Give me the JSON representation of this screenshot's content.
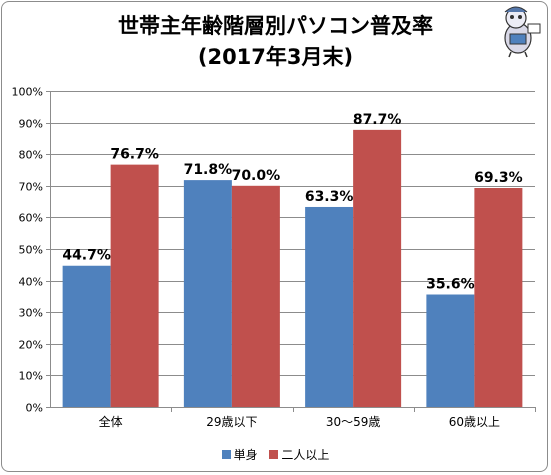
{
  "chart_data": {
    "type": "bar",
    "title": "世帯主年齢階層別パソコン普及率",
    "subtitle": "(2017年3月末)",
    "categories": [
      "全体",
      "29歳以下",
      "30〜59歳",
      "60歳以上"
    ],
    "series": [
      {
        "name": "単身",
        "values": [
          44.7,
          71.8,
          63.3,
          35.6
        ],
        "color": "#4f81bd"
      },
      {
        "name": "二人以上",
        "values": [
          76.7,
          70.0,
          87.7,
          69.3
        ],
        "color": "#c0504d"
      }
    ],
    "data_labels": [
      [
        "44.7%",
        "71.8%",
        "63.3%",
        "35.6%"
      ],
      [
        "76.7%",
        "70.0%",
        "87.7%",
        "69.3%"
      ]
    ],
    "ylim": [
      0,
      100
    ],
    "yticks": [
      "0%",
      "10%",
      "20%",
      "30%",
      "40%",
      "50%",
      "60%",
      "70%",
      "80%",
      "90%",
      "100%"
    ],
    "grid": true,
    "legend_position": "bottom"
  },
  "decoration": {
    "mascot_icon": "mascot-icon"
  }
}
